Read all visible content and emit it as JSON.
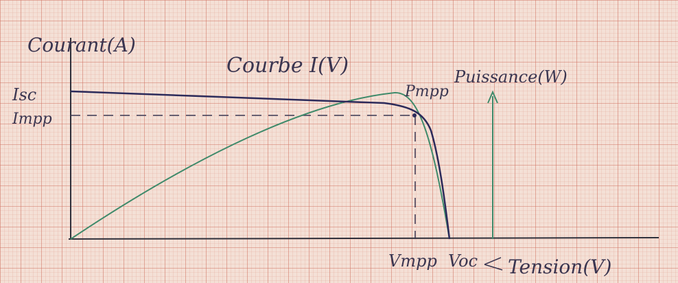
{
  "title": "Courbe I(V)",
  "y_axis_label": "Courant(A)",
  "x_axis_label": "Tension(V)",
  "power_axis_label": "Puissance(W)",
  "markers": {
    "isc": "Isc",
    "impp": "Impp",
    "pmpp": "Pmpp",
    "vmpp": "Vmpp",
    "voc": "Voc"
  }
}
